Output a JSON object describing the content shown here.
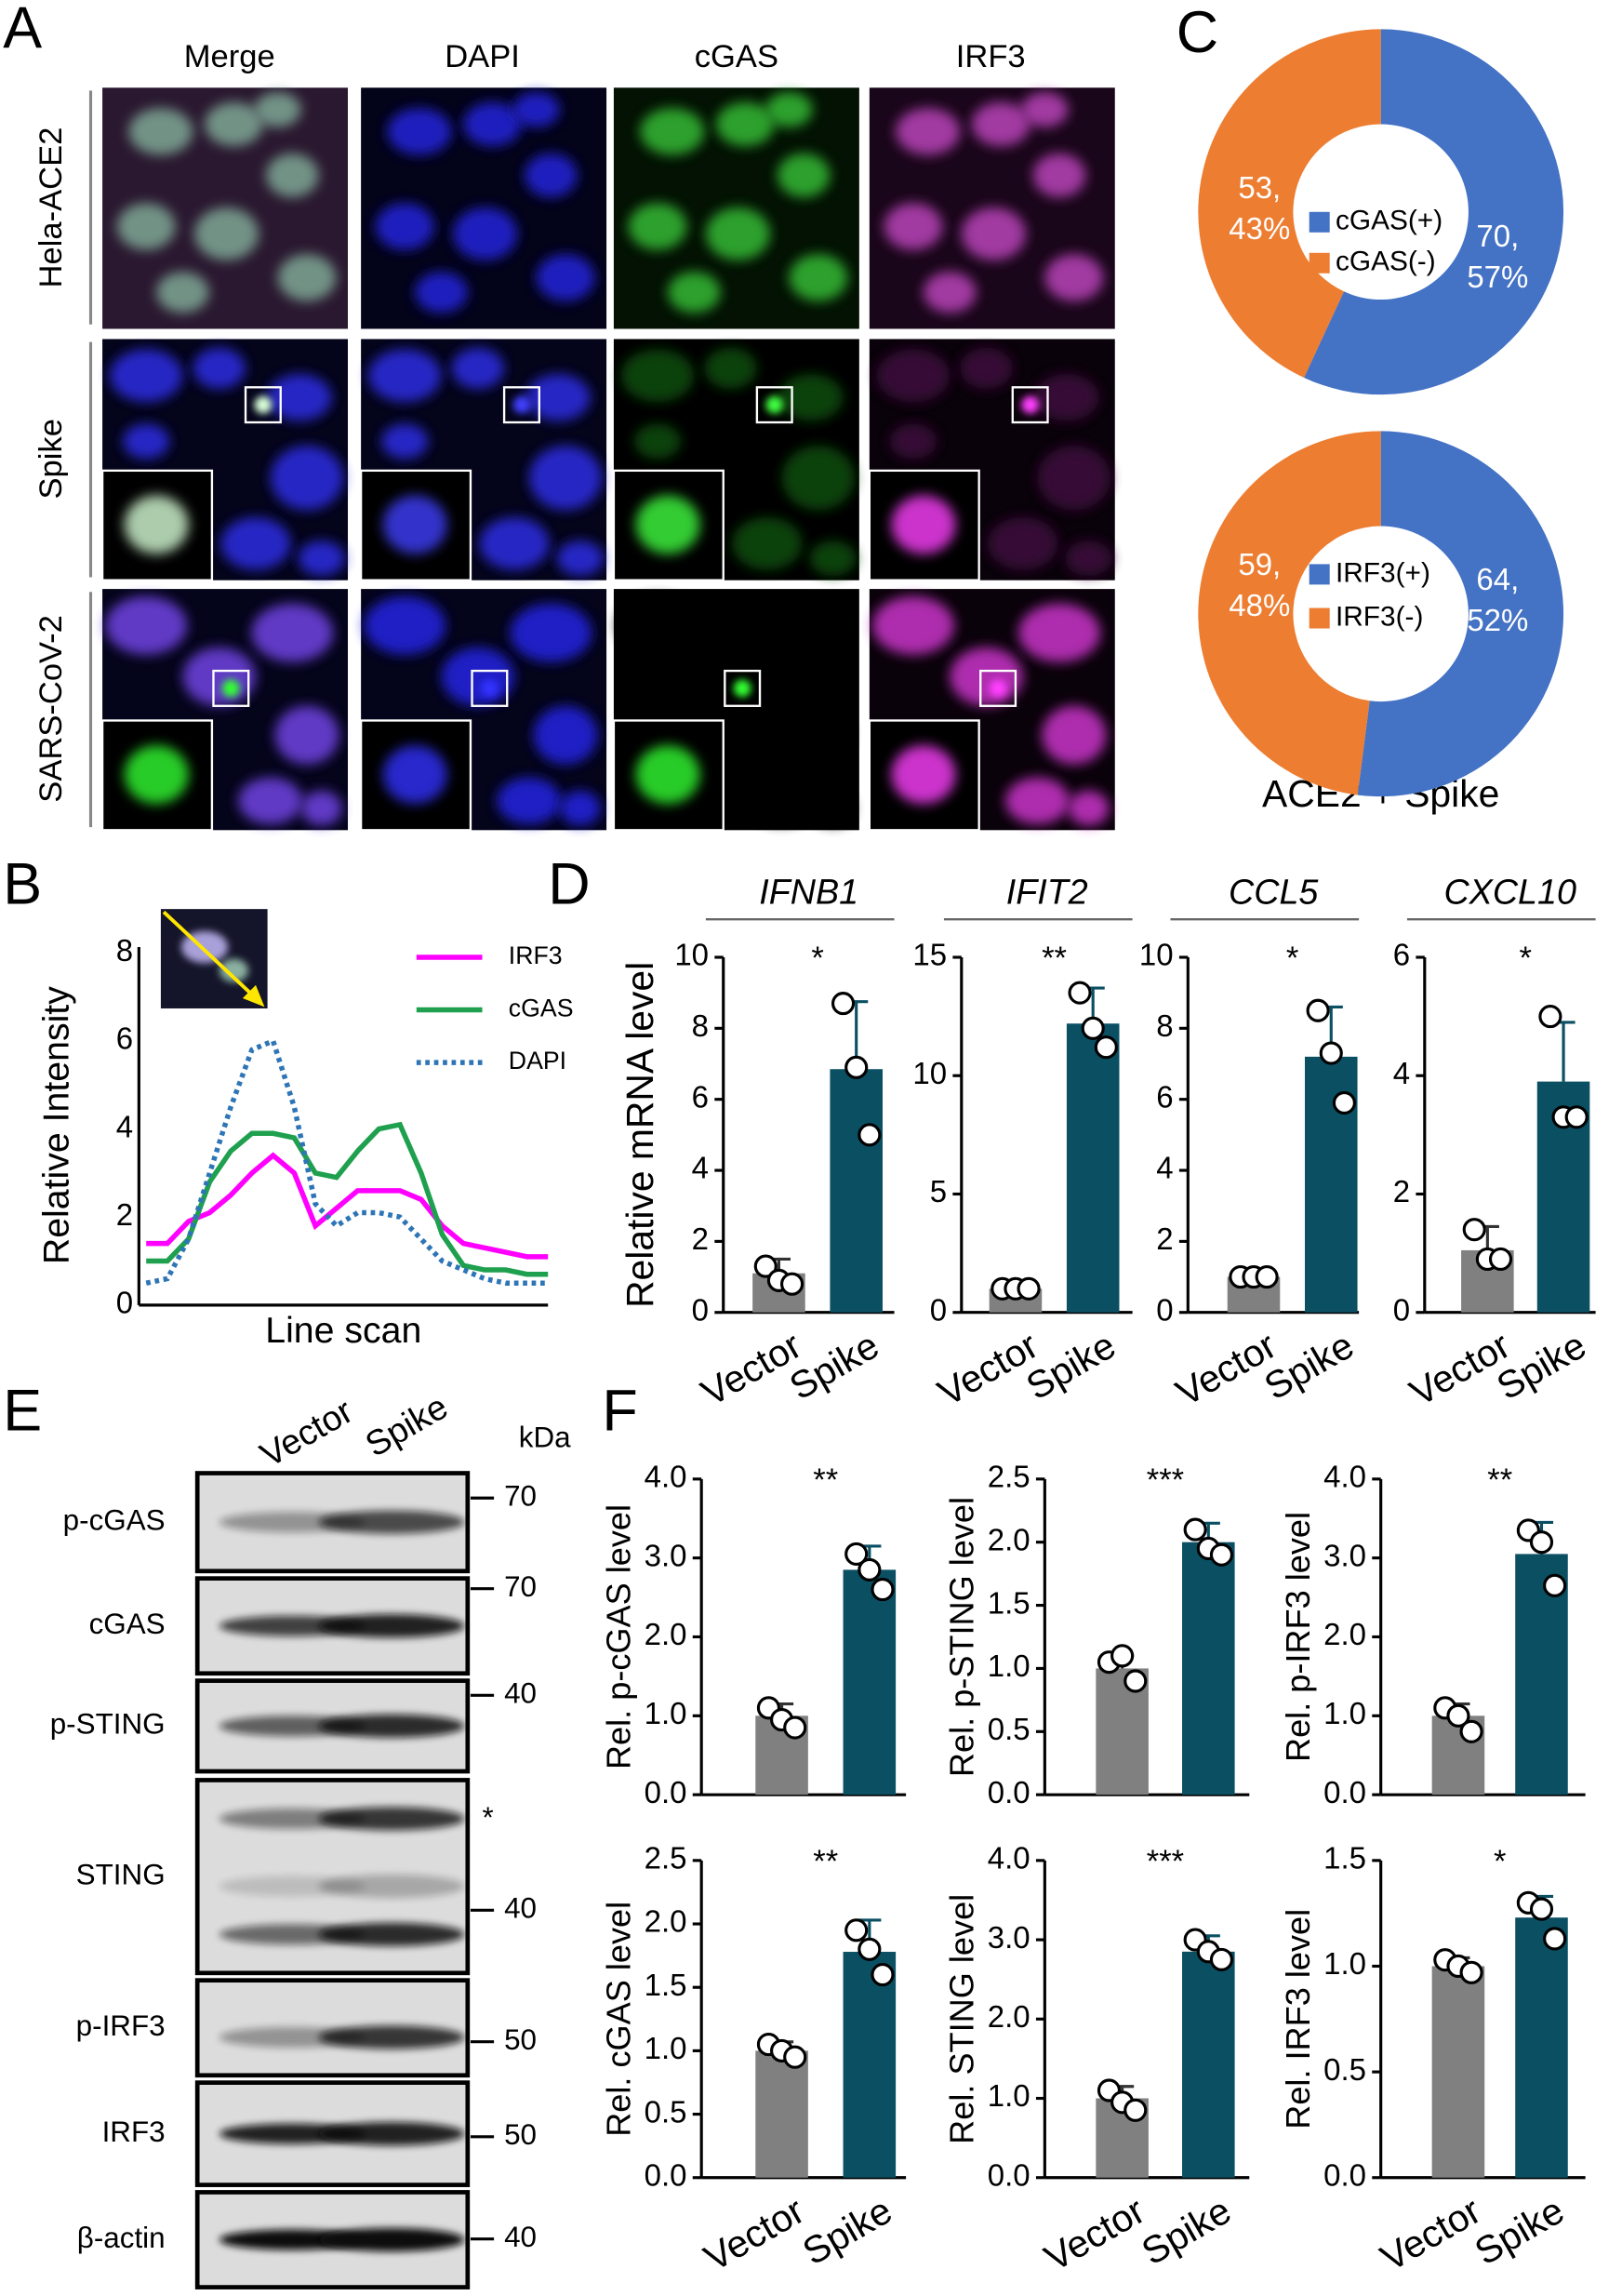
{
  "panels": {
    "a": "A",
    "b": "B",
    "c": "C",
    "d": "D",
    "e": "E",
    "f": "F"
  },
  "panel_a": {
    "columns": [
      "Merge",
      "DAPI",
      "cGAS",
      "IRF3"
    ],
    "rows": [
      "Hela-ACE2",
      "Spike",
      "SARS-CoV-2"
    ]
  },
  "panel_c": {
    "caption": "ACE2 + Spike"
  },
  "panel_e": {
    "lanes": [
      "Vector",
      "Spike"
    ],
    "unit": "kDa",
    "blots": [
      {
        "label": "p-cGAS",
        "markers": [
          "70"
        ]
      },
      {
        "label": "cGAS",
        "markers": [
          "70"
        ]
      },
      {
        "label": "p-STING",
        "markers": [
          "40"
        ]
      },
      {
        "label": "STING",
        "markers": [
          "*",
          "40"
        ]
      },
      {
        "label": "p-IRF3",
        "markers": [
          "50"
        ]
      },
      {
        "label": "IRF3",
        "markers": [
          "50"
        ]
      },
      {
        "label": "β-actin",
        "markers": [
          "40"
        ]
      }
    ]
  },
  "chart_data": [
    {
      "type": "pie",
      "categories": [
        "cGAS(+)",
        "cGAS(-)"
      ],
      "values": [
        70,
        53
      ],
      "value_labels": [
        [
          "70,",
          "57%"
        ],
        [
          "53,",
          "43%"
        ]
      ],
      "colors": [
        "#4472c4",
        "#ed7d31"
      ]
    },
    {
      "type": "pie",
      "categories": [
        "IRF3(+)",
        "IRF3(-)"
      ],
      "values": [
        64,
        59
      ],
      "value_labels": [
        [
          "64,",
          "52%"
        ],
        [
          "59,",
          "48%"
        ]
      ],
      "colors": [
        "#4472c4",
        "#ed7d31"
      ]
    },
    {
      "type": "line",
      "ylabel": "Relative Intensity",
      "xlabel": "Line scan",
      "ylim": [
        0,
        8
      ],
      "yticks": [
        0,
        2,
        4,
        6,
        8
      ],
      "categories": [
        null,
        null,
        null,
        null,
        null,
        null,
        null,
        null,
        null,
        null,
        null,
        null,
        null,
        null,
        null,
        null,
        null,
        null,
        null,
        null
      ],
      "series": [
        {
          "name": "IRF3",
          "color": "#ff00ff",
          "dash": false,
          "values": [
            1.4,
            1.4,
            1.9,
            2.1,
            2.5,
            3.0,
            3.4,
            3.0,
            1.8,
            2.2,
            2.6,
            2.6,
            2.6,
            2.4,
            1.8,
            1.4,
            1.3,
            1.2,
            1.1,
            1.1
          ]
        },
        {
          "name": "cGAS",
          "color": "#1fa04e",
          "dash": false,
          "values": [
            1.0,
            1.0,
            1.5,
            2.8,
            3.5,
            3.9,
            3.9,
            3.8,
            3.0,
            2.9,
            3.5,
            4.0,
            4.1,
            3.0,
            1.6,
            0.9,
            0.8,
            0.8,
            0.7,
            0.7
          ]
        },
        {
          "name": "DAPI",
          "color": "#2e75b6",
          "dash": true,
          "values": [
            0.5,
            0.6,
            1.5,
            3.0,
            4.5,
            5.8,
            6.0,
            4.5,
            2.3,
            1.8,
            2.1,
            2.1,
            2.0,
            1.5,
            1.0,
            0.8,
            0.6,
            0.5,
            0.5,
            0.5
          ]
        }
      ]
    },
    {
      "type": "bar",
      "title": "IFNB1",
      "ylabel": "Relative mRNA level",
      "significance": "*",
      "ylim": [
        0,
        10
      ],
      "yticks": [
        0,
        2,
        4,
        6,
        8,
        10
      ],
      "categories": [
        "Vector",
        "Spike"
      ],
      "colors": [
        "#808080",
        "#0b4f63"
      ],
      "values": [
        1.1,
        6.85
      ],
      "errors": [
        0.4,
        1.9
      ],
      "points": [
        [
          1.3,
          0.9,
          0.8
        ],
        [
          8.7,
          6.9,
          5.0
        ]
      ]
    },
    {
      "type": "bar",
      "title": "IFIT2",
      "significance": "**",
      "ylim": [
        0,
        15
      ],
      "yticks": [
        0,
        5,
        10,
        15
      ],
      "categories": [
        "Vector",
        "Spike"
      ],
      "colors": [
        "#808080",
        "#0b4f63"
      ],
      "values": [
        1.0,
        12.2
      ],
      "errors": [
        0.1,
        1.5
      ],
      "points": [
        [
          1.0,
          1.0,
          1.0
        ],
        [
          13.5,
          12.0,
          11.2
        ]
      ]
    },
    {
      "type": "bar",
      "title": "CCL5",
      "significance": "*",
      "ylim": [
        0,
        10
      ],
      "yticks": [
        0,
        2,
        4,
        6,
        8,
        10
      ],
      "categories": [
        "Vector",
        "Spike"
      ],
      "colors": [
        "#808080",
        "#0b4f63"
      ],
      "values": [
        1.0,
        7.2
      ],
      "errors": [
        0.1,
        1.4
      ],
      "points": [
        [
          1.0,
          1.0,
          1.0
        ],
        [
          8.5,
          7.3,
          5.9
        ]
      ]
    },
    {
      "type": "bar",
      "title": "CXCL10",
      "significance": "*",
      "ylim": [
        0,
        6
      ],
      "yticks": [
        0,
        2,
        4,
        6
      ],
      "categories": [
        "Vector",
        "Spike"
      ],
      "colors": [
        "#808080",
        "#0b4f63"
      ],
      "values": [
        1.05,
        3.9
      ],
      "errors": [
        0.4,
        1.0
      ],
      "points": [
        [
          1.4,
          0.9,
          0.9
        ],
        [
          5.0,
          3.3,
          3.3
        ]
      ]
    },
    {
      "type": "bar",
      "ylabel": "Rel. p-cGAS level",
      "significance": "**",
      "ylim": [
        0,
        4
      ],
      "yticks": [
        {
          "value": 0,
          "label": "0.0"
        },
        {
          "value": 1,
          "label": "1.0"
        },
        {
          "value": 2,
          "label": "2.0"
        },
        {
          "value": 3,
          "label": "3.0"
        },
        {
          "value": 4,
          "label": "4.0"
        }
      ],
      "categories": [
        null,
        null
      ],
      "colors": [
        "#808080",
        "#0b4f63"
      ],
      "values": [
        1.0,
        2.85
      ],
      "errors": [
        0.15,
        0.3
      ],
      "points": [
        [
          1.1,
          0.95,
          0.85
        ],
        [
          3.05,
          2.85,
          2.6
        ]
      ]
    },
    {
      "type": "bar",
      "ylabel": "Rel. p-STING level",
      "significance": "***",
      "ylim": [
        0,
        2.5
      ],
      "yticks": [
        {
          "value": 0,
          "label": "0.0"
        },
        0.5,
        {
          "value": 1,
          "label": "1.0"
        },
        1.5,
        {
          "value": 2,
          "label": "2.0"
        },
        2.5
      ],
      "categories": [
        null,
        null
      ],
      "colors": [
        "#808080",
        "#0b4f63"
      ],
      "values": [
        1.0,
        2.0
      ],
      "errors": [
        0.1,
        0.15
      ],
      "points": [
        [
          1.05,
          1.1,
          0.9
        ],
        [
          2.1,
          1.95,
          1.9
        ]
      ]
    },
    {
      "type": "bar",
      "ylabel": "Rel. p-IRF3 level",
      "significance": "**",
      "ylim": [
        0,
        4
      ],
      "yticks": [
        {
          "value": 0,
          "label": "0.0"
        },
        {
          "value": 1,
          "label": "1.0"
        },
        {
          "value": 2,
          "label": "2.0"
        },
        {
          "value": 3,
          "label": "3.0"
        },
        {
          "value": 4,
          "label": "4.0"
        }
      ],
      "categories": [
        null,
        null
      ],
      "colors": [
        "#808080",
        "#0b4f63"
      ],
      "values": [
        1.0,
        3.05
      ],
      "errors": [
        0.15,
        0.4
      ],
      "points": [
        [
          1.1,
          1.0,
          0.8
        ],
        [
          3.35,
          3.2,
          2.65
        ]
      ]
    },
    {
      "type": "bar",
      "ylabel": "Rel. cGAS level",
      "significance": "**",
      "ylim": [
        0,
        2.5
      ],
      "yticks": [
        {
          "value": 0,
          "label": "0.0"
        },
        0.5,
        {
          "value": 1,
          "label": "1.0"
        },
        1.5,
        {
          "value": 2,
          "label": "2.0"
        },
        2.5
      ],
      "categories": [
        "Vector",
        "Spike"
      ],
      "colors": [
        "#808080",
        "#0b4f63"
      ],
      "values": [
        1.0,
        1.78
      ],
      "errors": [
        0.07,
        0.25
      ],
      "points": [
        [
          1.05,
          1.0,
          0.95
        ],
        [
          1.95,
          1.8,
          1.6
        ]
      ]
    },
    {
      "type": "bar",
      "ylabel": "Rel. STING level",
      "significance": "***",
      "ylim": [
        0,
        4
      ],
      "yticks": [
        {
          "value": 0,
          "label": "0.0"
        },
        {
          "value": 1,
          "label": "1.0"
        },
        {
          "value": 2,
          "label": "2.0"
        },
        {
          "value": 3,
          "label": "3.0"
        },
        {
          "value": 4,
          "label": "4.0"
        }
      ],
      "categories": [
        "Vector",
        "Spike"
      ],
      "colors": [
        "#808080",
        "#0b4f63"
      ],
      "values": [
        1.0,
        2.85
      ],
      "errors": [
        0.15,
        0.2
      ],
      "points": [
        [
          1.1,
          0.95,
          0.85
        ],
        [
          3.0,
          2.85,
          2.75
        ]
      ]
    },
    {
      "type": "bar",
      "ylabel": "Rel. IRF3 level",
      "significance": "*",
      "ylim": [
        0,
        1.5
      ],
      "yticks": [
        {
          "value": 0,
          "label": "0.0"
        },
        0.5,
        {
          "value": 1,
          "label": "1.0"
        },
        1.5
      ],
      "categories": [
        "Vector",
        "Spike"
      ],
      "colors": [
        "#808080",
        "#0b4f63"
      ],
      "values": [
        1.0,
        1.23
      ],
      "errors": [
        0.04,
        0.1
      ],
      "points": [
        [
          1.03,
          1.0,
          0.97
        ],
        [
          1.3,
          1.27,
          1.13
        ]
      ]
    }
  ]
}
